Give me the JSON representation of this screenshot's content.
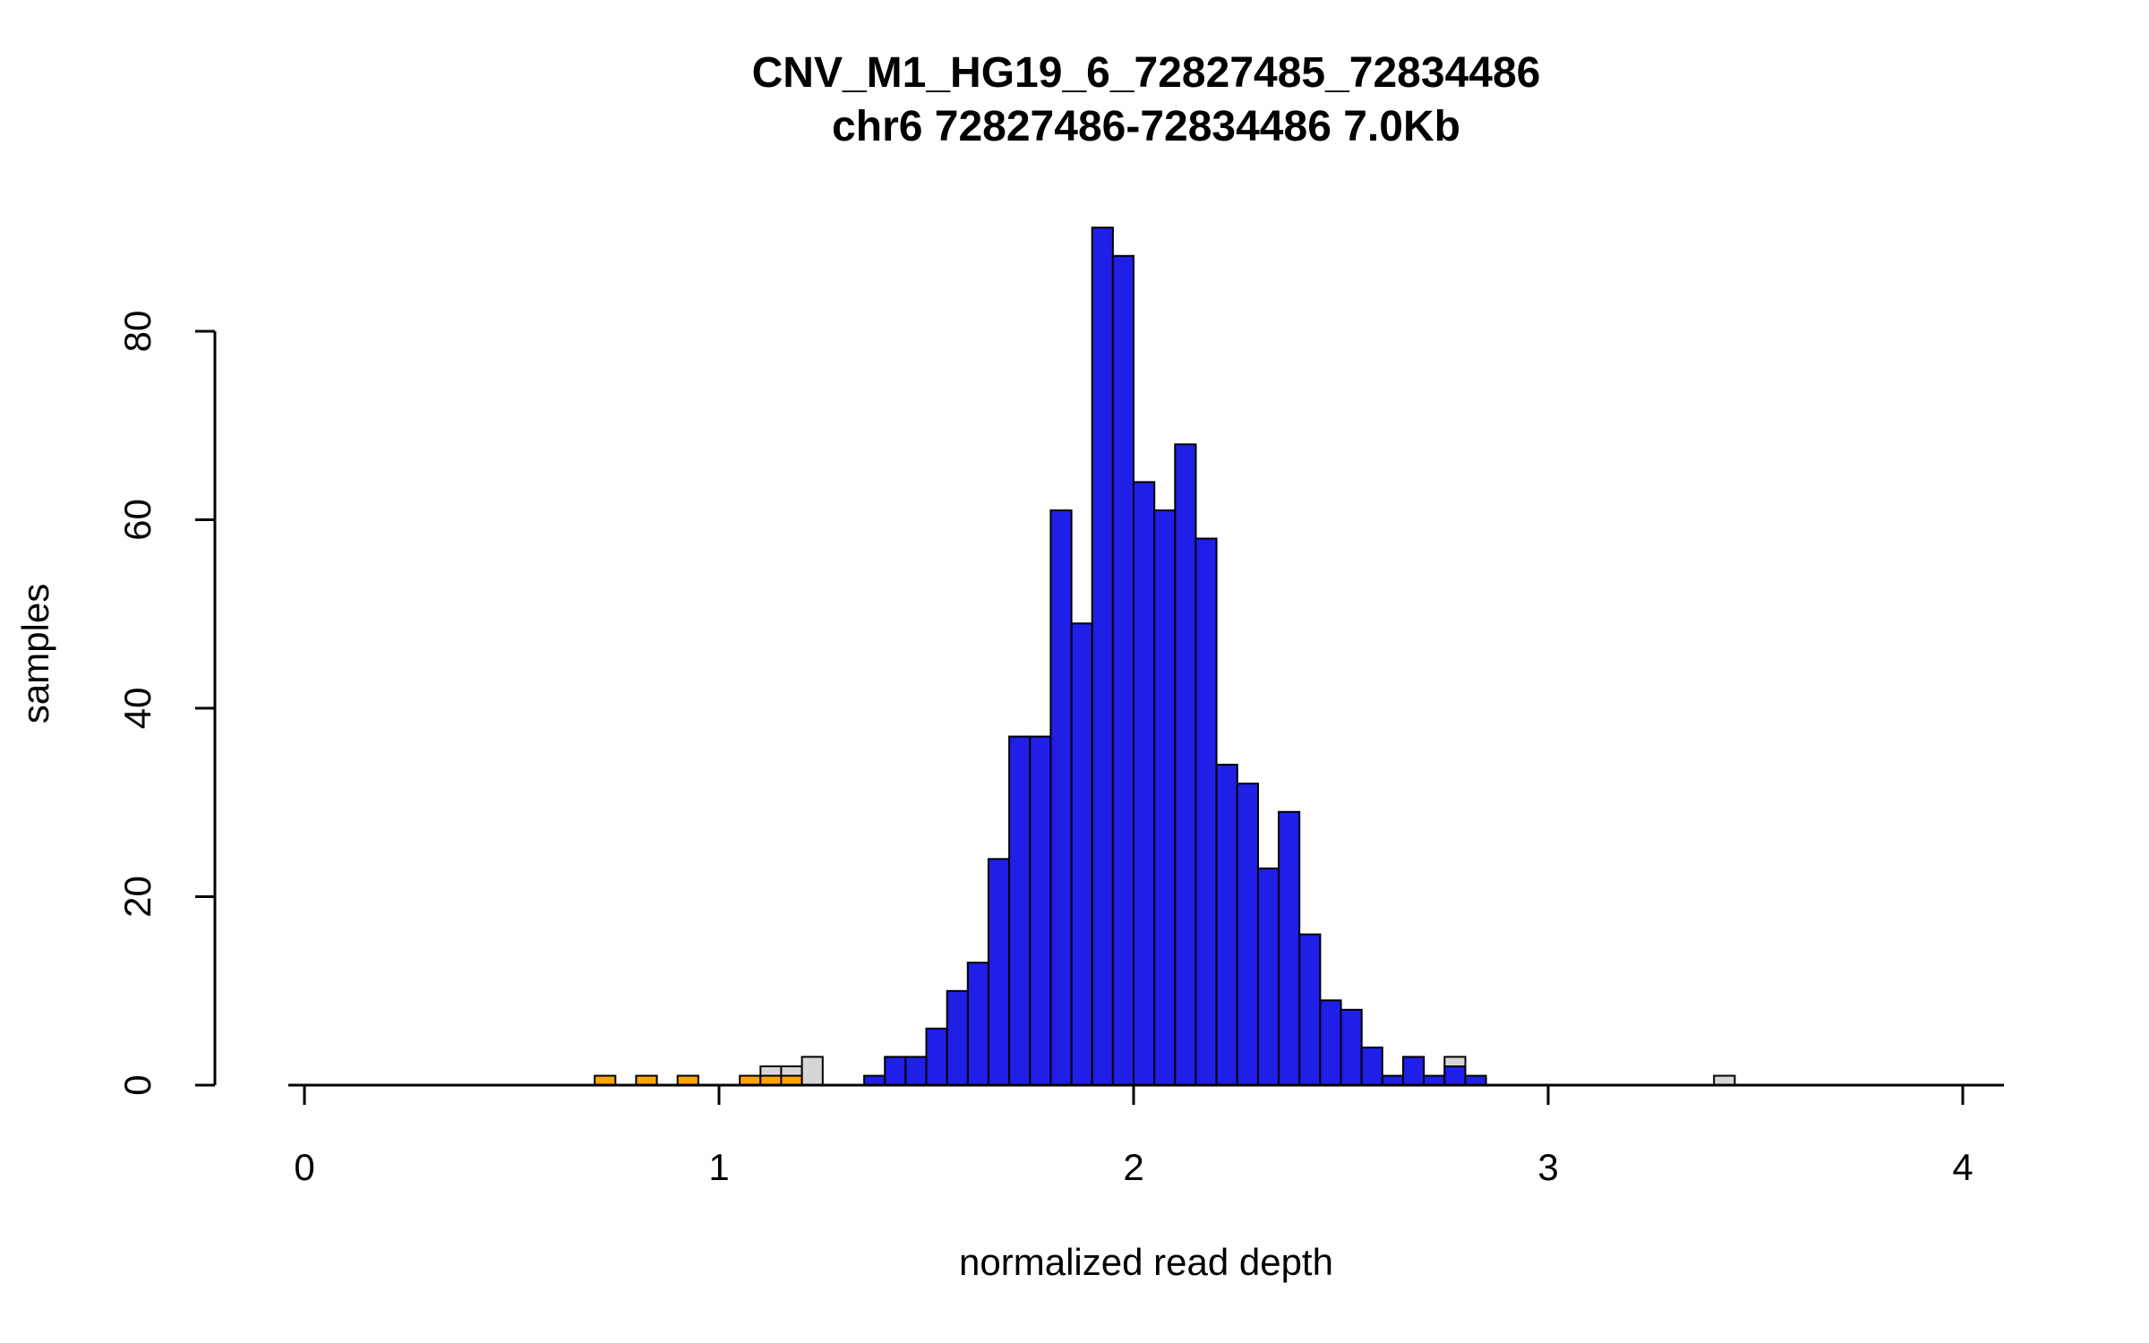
{
  "chart_data": {
    "type": "bar",
    "subtype": "histogram",
    "title": "CNV_M1_HG19_6_72827485_72834486",
    "subtitle": "chr6 72827486-72834486 7.0Kb",
    "xlabel": "normalized read depth",
    "ylabel": "samples",
    "xlim": [
      0,
      4.1
    ],
    "ylim": [
      0,
      93
    ],
    "x_ticks": [
      "0",
      "1",
      "2",
      "3",
      "4"
    ],
    "y_ticks": [
      "0",
      "20",
      "40",
      "60",
      "80"
    ],
    "bin_width": 0.05,
    "grid": "off",
    "legend": "none",
    "colors": {
      "blue": "#1f1fe8",
      "orange": "#ffa500",
      "gray": "#d6d6d6",
      "axis": "#000000",
      "bar_border": "#000000"
    },
    "bins": [
      {
        "x": 0.7,
        "n": 1,
        "c": "orange"
      },
      {
        "x": 0.8,
        "n": 1,
        "c": "orange"
      },
      {
        "x": 0.9,
        "n": 1,
        "c": "orange"
      },
      {
        "x": 1.05,
        "n": 1,
        "c": "orange"
      },
      {
        "x": 1.1,
        "n": 2,
        "c": "gray"
      },
      {
        "x": 1.1,
        "n": 1,
        "c": "orange"
      },
      {
        "x": 1.15,
        "n": 2,
        "c": "gray"
      },
      {
        "x": 1.15,
        "n": 1,
        "c": "orange"
      },
      {
        "x": 1.2,
        "n": 3,
        "c": "gray"
      },
      {
        "x": 1.35,
        "n": 1,
        "c": "blue"
      },
      {
        "x": 1.4,
        "n": 3,
        "c": "blue"
      },
      {
        "x": 1.45,
        "n": 3,
        "c": "blue"
      },
      {
        "x": 1.5,
        "n": 6,
        "c": "blue"
      },
      {
        "x": 1.55,
        "n": 10,
        "c": "blue"
      },
      {
        "x": 1.6,
        "n": 13,
        "c": "blue"
      },
      {
        "x": 1.65,
        "n": 24,
        "c": "blue"
      },
      {
        "x": 1.7,
        "n": 37,
        "c": "blue"
      },
      {
        "x": 1.75,
        "n": 37,
        "c": "blue"
      },
      {
        "x": 1.8,
        "n": 61,
        "c": "blue"
      },
      {
        "x": 1.85,
        "n": 49,
        "c": "blue"
      },
      {
        "x": 1.9,
        "n": 91,
        "c": "blue"
      },
      {
        "x": 1.95,
        "n": 88,
        "c": "blue"
      },
      {
        "x": 2.0,
        "n": 64,
        "c": "blue"
      },
      {
        "x": 2.05,
        "n": 61,
        "c": "blue"
      },
      {
        "x": 2.1,
        "n": 68,
        "c": "blue"
      },
      {
        "x": 2.15,
        "n": 58,
        "c": "blue"
      },
      {
        "x": 2.2,
        "n": 34,
        "c": "blue"
      },
      {
        "x": 2.25,
        "n": 32,
        "c": "blue"
      },
      {
        "x": 2.3,
        "n": 23,
        "c": "blue"
      },
      {
        "x": 2.35,
        "n": 29,
        "c": "blue"
      },
      {
        "x": 2.4,
        "n": 16,
        "c": "blue"
      },
      {
        "x": 2.45,
        "n": 9,
        "c": "blue"
      },
      {
        "x": 2.5,
        "n": 8,
        "c": "blue"
      },
      {
        "x": 2.55,
        "n": 4,
        "c": "blue"
      },
      {
        "x": 2.6,
        "n": 1,
        "c": "blue"
      },
      {
        "x": 2.65,
        "n": 3,
        "c": "blue"
      },
      {
        "x": 2.7,
        "n": 1,
        "c": "blue"
      },
      {
        "x": 2.75,
        "n": 3,
        "c": "gray"
      },
      {
        "x": 2.75,
        "n": 2,
        "c": "blue"
      },
      {
        "x": 2.8,
        "n": 1,
        "c": "blue"
      },
      {
        "x": 3.4,
        "n": 1,
        "c": "gray"
      }
    ]
  }
}
